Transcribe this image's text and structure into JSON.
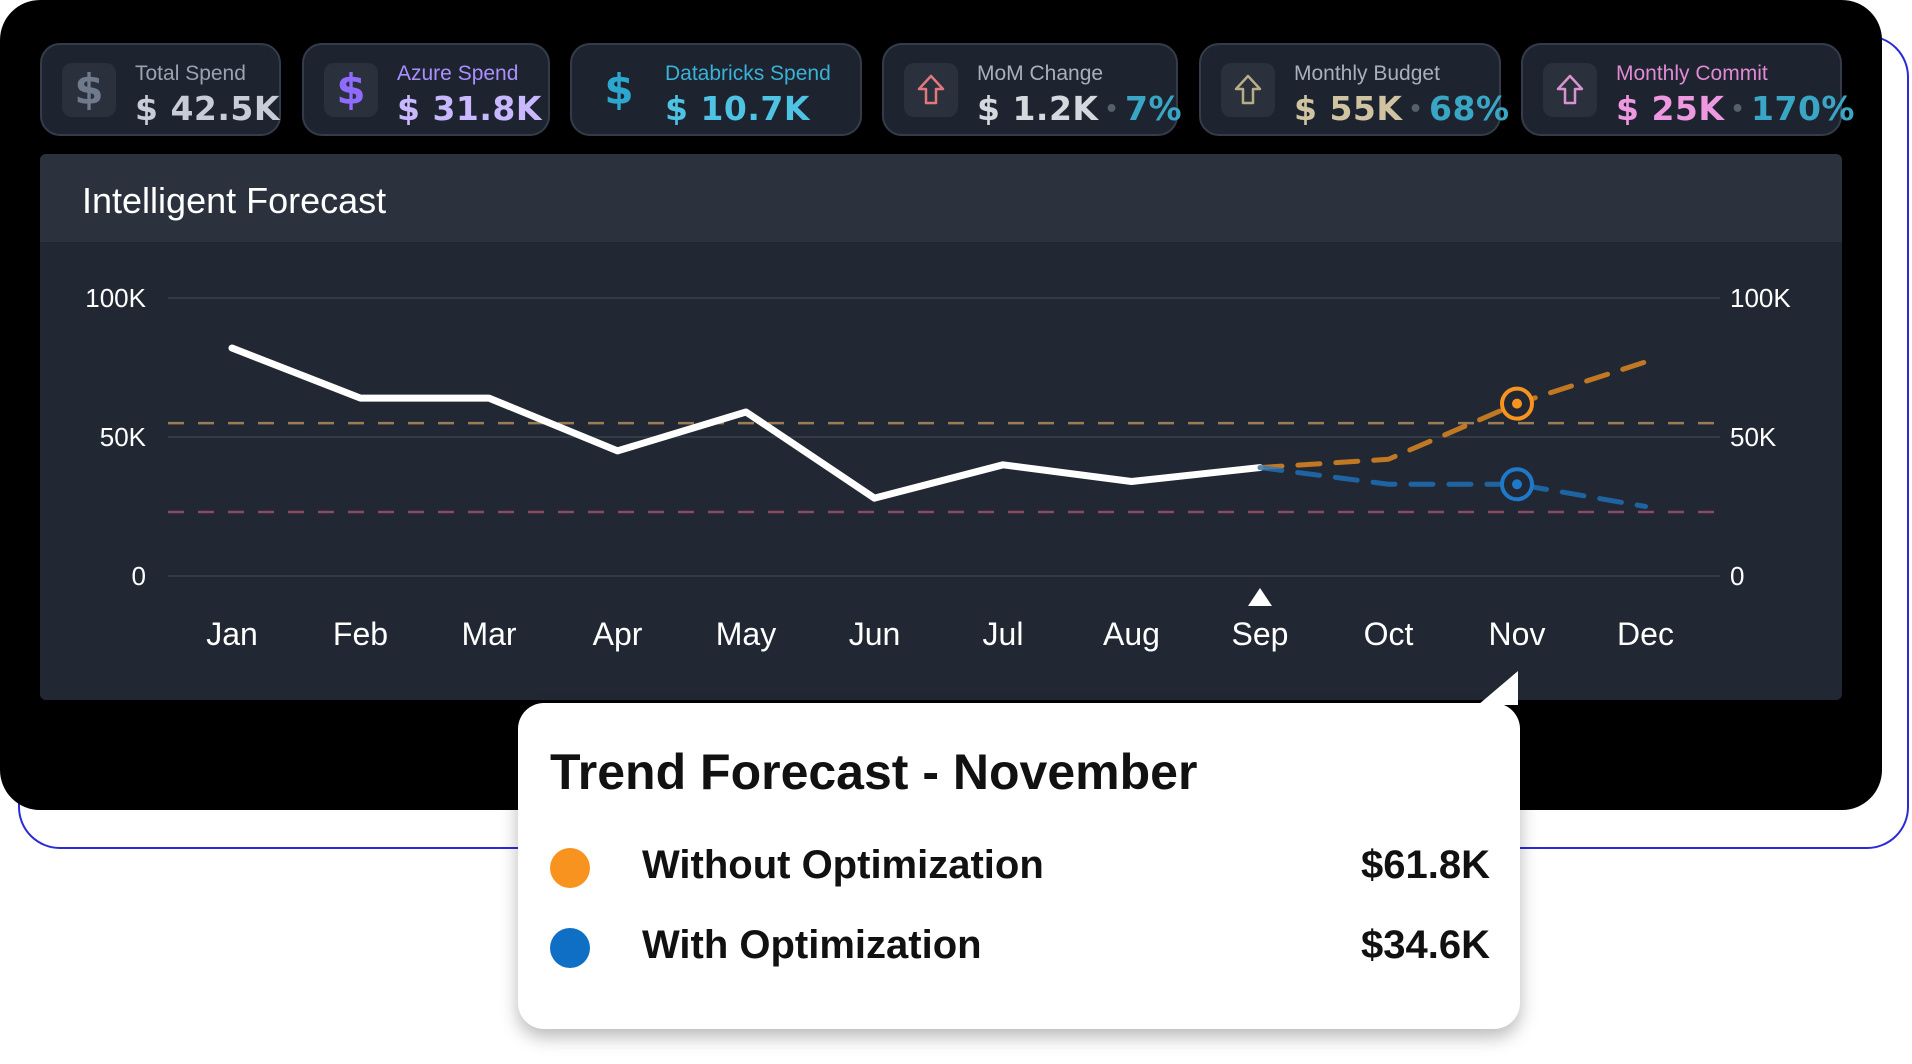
{
  "cards": [
    {
      "label": "Total Spend",
      "value": "$ 42.5K",
      "label_color": "#9aa3b2",
      "value_color": "#c7ccd6",
      "icon": "dollar-icon",
      "icon_color": "#6f7a8c"
    },
    {
      "label": "Azure Spend",
      "value": "$ 31.8K",
      "label_color": "#a890ff",
      "value_color": "#c9b8ff",
      "icon": "dollar-icon",
      "icon_color": "#8f6cff"
    },
    {
      "label": "Databricks Spend",
      "value": "$ 10.7K",
      "label_color": "#3ab1d6",
      "value_color": "#4ec3e3",
      "icon": "dollar-icon",
      "icon_color": "#2ca7cf"
    },
    {
      "label": "MoM Change",
      "value": "$ 1.2K",
      "pct": "7%",
      "label_color": "#a9b0bc",
      "value_color": "#d4d8df",
      "icon": "arrow-up-icon",
      "icon_color": "#e0787c"
    },
    {
      "label": "Monthly Budget",
      "value": "$ 55K",
      "pct": "68%",
      "label_color": "#a9b0bc",
      "value_color": "#cfc3a2",
      "icon": "arrow-up-icon",
      "icon_color": "#b7ad86"
    },
    {
      "label": "Monthly Commit",
      "value": "$ 25K",
      "pct": "170%",
      "label_color": "#e08ad4",
      "value_color": "#ef98e2",
      "icon": "arrow-up-icon",
      "icon_color": "#d993cf"
    }
  ],
  "panel": {
    "title": "Intelligent Forecast"
  },
  "chart_data": {
    "type": "line",
    "categories": [
      "Jan",
      "Feb",
      "Mar",
      "Apr",
      "May",
      "Jun",
      "Jul",
      "Aug",
      "Sep",
      "Oct",
      "Nov",
      "Dec"
    ],
    "ylim": [
      0,
      100
    ],
    "y_ticks_left": [
      "100K",
      "50K",
      "0"
    ],
    "y_ticks_right": [
      "100K",
      "50K",
      "0"
    ],
    "current_marker": "Sep",
    "series": [
      {
        "values": [
          82,
          64,
          64,
          45,
          59,
          28,
          40,
          34,
          39,
          null,
          null,
          null
        ],
        "color": "#ffffff",
        "style": "solid"
      },
      {
        "values": [
          null,
          null,
          null,
          null,
          null,
          null,
          null,
          null,
          39,
          42,
          62,
          77
        ],
        "color": "#f7931e",
        "style": "dashed"
      },
      {
        "values": [
          null,
          null,
          null,
          null,
          null,
          null,
          null,
          null,
          39,
          33,
          33,
          25
        ],
        "color": "#1f78c8",
        "style": "dashed"
      }
    ],
    "reference_lines": [
      {
        "value": 55,
        "color": "#9b7d55"
      },
      {
        "value": 23,
        "color": "#8a4a63"
      }
    ],
    "highlight": {
      "category": "Nov"
    }
  },
  "tooltip": {
    "title": "Trend Forecast - November",
    "rows": [
      {
        "label": "Without Optimization",
        "value": "$61.8K",
        "color": "#f7931e"
      },
      {
        "label": "With Optimization",
        "value": "$34.6K",
        "color": "#0e6fc4"
      }
    ]
  }
}
